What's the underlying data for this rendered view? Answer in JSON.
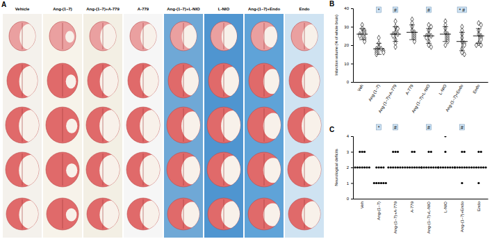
{
  "panel_a": {
    "title": "A",
    "columns": [
      "Vehicle",
      "Ang-(1–7)",
      "Ang-(1–7)+A-779",
      "A-779",
      "Ang-(1–7)+L-NIO",
      "L-NIO",
      "Ang-(1–7)+Endo",
      "Endo"
    ]
  },
  "chart_data": [
    {
      "type": "dot",
      "title": "B",
      "y_label": "Infarction volume (% of whole brain)",
      "categories": [
        "Veh",
        "Ang-(1–7)",
        "Ang-(1–7)+A-779",
        "A-779",
        "Ang-(1–7)+L-NIO",
        "L-NIO",
        "Ang-(1–7)+Endo",
        "Endo"
      ],
      "values": [
        [
          31,
          29,
          28,
          27,
          26,
          26,
          25,
          24,
          23,
          22
        ],
        [
          24,
          21,
          19,
          18,
          18,
          17,
          17,
          16,
          16,
          15
        ],
        [
          33,
          30,
          29,
          27,
          26,
          26,
          25,
          23,
          21,
          19
        ],
        [
          34,
          32,
          30,
          28,
          27,
          26,
          25,
          24,
          23,
          22
        ],
        [
          31,
          30,
          28,
          26,
          25,
          25,
          24,
          22,
          20,
          19
        ],
        [
          33,
          31,
          29,
          27,
          26,
          25,
          24,
          23,
          22,
          20
        ],
        [
          30,
          28,
          26,
          24,
          22,
          21,
          20,
          18,
          16,
          15
        ],
        [
          32,
          31,
          28,
          26,
          25,
          24,
          23,
          21,
          20,
          20
        ]
      ],
      "mean": [
        26,
        18,
        26,
        27,
        25,
        26,
        22,
        25
      ],
      "sd": [
        3,
        3,
        4,
        4,
        4,
        4,
        5,
        4
      ],
      "significance": [
        null,
        "*",
        "#",
        null,
        "#",
        null,
        "* #",
        null
      ],
      "marker": "diamond",
      "ylim": [
        0,
        40
      ],
      "yticks": [
        0,
        10,
        20,
        30,
        40
      ]
    },
    {
      "type": "dot",
      "title": "C",
      "y_label": "Neurological deficits",
      "categories": [
        "Veh",
        "Ang-(1–7)",
        "Ang-(1–7)+A-779",
        "A-779",
        "Ang-(1–7)+L-NIO",
        "L-NIO",
        "Ang-(1–7)+Endo",
        "Endo"
      ],
      "values": [
        [
          3,
          3,
          3,
          2,
          2,
          2,
          2,
          2,
          2,
          2
        ],
        [
          2,
          2,
          2,
          2,
          1,
          1,
          1,
          1,
          1,
          1
        ],
        [
          3,
          3,
          3,
          2,
          2,
          2,
          2,
          2,
          2,
          2
        ],
        [
          3,
          3,
          2,
          2,
          2,
          2,
          2,
          2,
          2,
          2
        ],
        [
          3,
          3,
          2,
          2,
          2,
          2,
          2,
          2,
          2,
          2
        ],
        [
          4,
          3,
          2,
          2,
          2,
          2,
          2,
          2,
          2,
          2
        ],
        [
          3,
          3,
          2,
          2,
          2,
          2,
          2,
          2,
          2,
          1
        ],
        [
          3,
          3,
          2,
          2,
          2,
          2,
          2,
          2,
          2,
          1
        ]
      ],
      "significance": [
        null,
        "*",
        "#",
        null,
        "#",
        null,
        "#",
        null
      ],
      "marker": "circle",
      "ylim": [
        0,
        4
      ],
      "yticks": [
        0,
        1,
        2,
        3,
        4
      ]
    }
  ]
}
